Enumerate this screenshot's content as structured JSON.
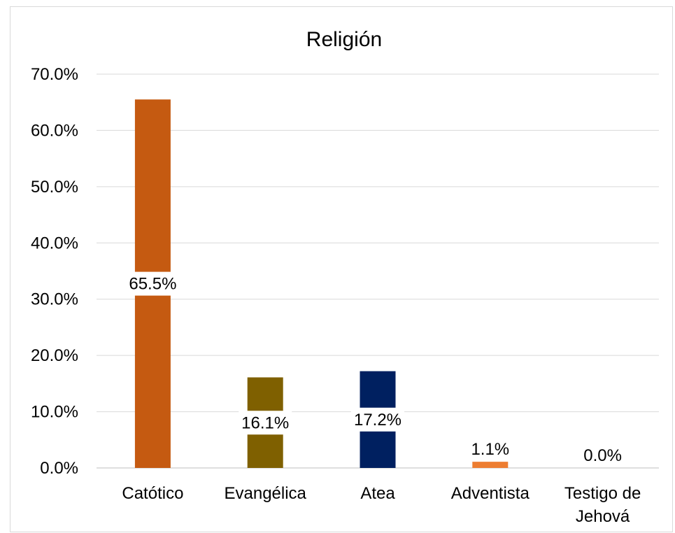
{
  "chart_data": {
    "type": "bar",
    "title": "Religión",
    "xlabel": "",
    "ylabel": "",
    "ylim": [
      0,
      70
    ],
    "y_ticks": [
      "0.0%",
      "10.0%",
      "20.0%",
      "30.0%",
      "40.0%",
      "50.0%",
      "60.0%",
      "70.0%"
    ],
    "categories": [
      "Catótico",
      "Evangélica",
      "Atea",
      "Adventista",
      "Testigo de Jehová"
    ],
    "values": [
      65.5,
      16.1,
      17.2,
      1.1,
      0.0
    ],
    "data_labels": [
      "65.5%",
      "16.1%",
      "17.2%",
      "1.1%",
      "0.0%"
    ],
    "colors": [
      "#C55A11",
      "#7F6000",
      "#002060",
      "#ED7D31",
      "#A5A5A5"
    ],
    "grid": true,
    "legend": "none"
  }
}
